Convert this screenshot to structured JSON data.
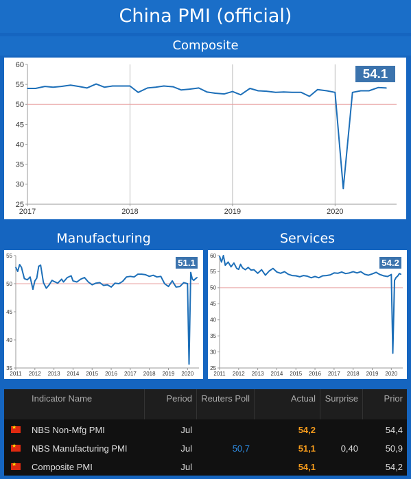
{
  "title": "China PMI (official)",
  "composite_label": "Composite",
  "manufacturing_label": "Manufacturing",
  "services_label": "Services",
  "colors": {
    "line": "#1d6fb8",
    "reference": "#e8a1a1",
    "badge": "#3b73ad",
    "actual": "#f59b1c",
    "poll": "#2f8de4"
  },
  "chart_data": [
    {
      "type": "line",
      "title": "Composite",
      "ylim": [
        25,
        60
      ],
      "yticks": [
        25,
        30,
        35,
        40,
        45,
        50,
        55,
        60
      ],
      "xlim": [
        2017.0,
        2020.6
      ],
      "xticks": [
        2017,
        2018,
        2019,
        2020
      ],
      "vertical_gridlines": [
        2018,
        2019,
        2020
      ],
      "reference_line": 50,
      "last_value_label": "54.1",
      "x": [
        2017.0,
        2017.08,
        2017.17,
        2017.25,
        2017.33,
        2017.42,
        2017.5,
        2017.58,
        2017.67,
        2017.75,
        2017.83,
        2017.92,
        2018.0,
        2018.08,
        2018.17,
        2018.25,
        2018.33,
        2018.42,
        2018.5,
        2018.58,
        2018.67,
        2018.75,
        2018.83,
        2018.92,
        2019.0,
        2019.08,
        2019.17,
        2019.25,
        2019.33,
        2019.42,
        2019.5,
        2019.58,
        2019.67,
        2019.75,
        2019.83,
        2019.92,
        2020.0,
        2020.08,
        2020.17,
        2020.25,
        2020.33,
        2020.42,
        2020.5
      ],
      "values": [
        54.0,
        54.0,
        54.5,
        54.3,
        54.5,
        54.8,
        54.5,
        54.1,
        55.1,
        54.3,
        54.6,
        54.6,
        54.6,
        53.0,
        54.1,
        54.3,
        54.6,
        54.4,
        53.6,
        53.8,
        54.1,
        53.1,
        52.8,
        52.6,
        53.2,
        52.4,
        54.0,
        53.4,
        53.3,
        53.0,
        53.1,
        53.0,
        53.0,
        52.0,
        53.7,
        53.4,
        53.0,
        28.9,
        53.0,
        53.4,
        53.4,
        54.2,
        54.1
      ]
    },
    {
      "type": "line",
      "title": "Manufacturing",
      "ylim": [
        35,
        55
      ],
      "yticks": [
        35,
        40,
        45,
        50,
        55
      ],
      "xlim": [
        2011.0,
        2020.6
      ],
      "xticks": [
        2011,
        2012,
        2013,
        2014,
        2015,
        2016,
        2017,
        2018,
        2019,
        2020
      ],
      "reference_line": 50,
      "last_value_label": "51.1",
      "x": [
        2011.0,
        2011.1,
        2011.2,
        2011.3,
        2011.45,
        2011.6,
        2011.75,
        2011.9,
        2012.0,
        2012.1,
        2012.2,
        2012.3,
        2012.45,
        2012.6,
        2012.75,
        2012.9,
        2013.0,
        2013.2,
        2013.4,
        2013.5,
        2013.7,
        2013.9,
        2014.0,
        2014.2,
        2014.4,
        2014.6,
        2014.8,
        2015.0,
        2015.2,
        2015.4,
        2015.6,
        2015.8,
        2016.0,
        2016.2,
        2016.4,
        2016.6,
        2016.8,
        2017.0,
        2017.2,
        2017.4,
        2017.6,
        2017.8,
        2018.0,
        2018.2,
        2018.4,
        2018.6,
        2018.8,
        2019.0,
        2019.2,
        2019.4,
        2019.6,
        2019.8,
        2020.0,
        2020.08,
        2020.17,
        2020.25,
        2020.33,
        2020.42,
        2020.5
      ],
      "values": [
        52.9,
        52.2,
        53.4,
        52.9,
        50.9,
        50.7,
        51.2,
        49.0,
        50.5,
        51.0,
        53.1,
        53.3,
        50.2,
        49.2,
        49.8,
        50.6,
        50.4,
        50.1,
        50.8,
        50.3,
        51.1,
        51.4,
        50.5,
        50.3,
        50.8,
        51.1,
        50.3,
        49.8,
        50.1,
        50.2,
        49.7,
        49.8,
        49.4,
        50.1,
        50.0,
        50.4,
        51.2,
        51.3,
        51.2,
        51.7,
        51.7,
        51.6,
        51.3,
        51.5,
        51.2,
        51.3,
        50.0,
        49.5,
        50.5,
        49.4,
        49.5,
        50.2,
        50.0,
        35.7,
        52.0,
        50.8,
        50.6,
        50.9,
        51.1
      ]
    },
    {
      "type": "line",
      "title": "Services",
      "ylim": [
        25,
        60
      ],
      "yticks": [
        25,
        30,
        35,
        40,
        45,
        50,
        55,
        60
      ],
      "xlim": [
        2011.0,
        2020.6
      ],
      "xticks": [
        2011,
        2012,
        2013,
        2014,
        2015,
        2016,
        2017,
        2018,
        2019,
        2020
      ],
      "reference_line": 50,
      "last_value_label": "54.2",
      "x": [
        2011.0,
        2011.1,
        2011.2,
        2011.3,
        2011.45,
        2011.6,
        2011.75,
        2011.9,
        2012.0,
        2012.1,
        2012.2,
        2012.35,
        2012.5,
        2012.65,
        2012.8,
        2013.0,
        2013.2,
        2013.4,
        2013.6,
        2013.8,
        2014.0,
        2014.2,
        2014.4,
        2014.6,
        2014.8,
        2015.0,
        2015.2,
        2015.4,
        2015.6,
        2015.8,
        2016.0,
        2016.2,
        2016.4,
        2016.6,
        2016.8,
        2017.0,
        2017.2,
        2017.4,
        2017.6,
        2017.8,
        2018.0,
        2018.2,
        2018.4,
        2018.6,
        2018.8,
        2019.0,
        2019.2,
        2019.4,
        2019.6,
        2019.8,
        2020.0,
        2020.08,
        2020.17,
        2020.25,
        2020.33,
        2020.42,
        2020.5
      ],
      "values": [
        59.8,
        58.0,
        60.0,
        57.0,
        58.0,
        56.5,
        57.7,
        56.0,
        55.7,
        57.3,
        56.2,
        55.6,
        56.3,
        55.5,
        55.6,
        54.5,
        55.6,
        53.9,
        55.2,
        56.0,
        54.9,
        54.5,
        55.0,
        54.2,
        53.8,
        53.7,
        53.4,
        53.8,
        53.6,
        53.1,
        53.5,
        53.1,
        53.7,
        53.8,
        54.0,
        54.6,
        54.5,
        54.9,
        54.4,
        54.6,
        55.0,
        54.6,
        55.0,
        54.2,
        53.9,
        54.3,
        54.8,
        54.1,
        53.7,
        53.5,
        54.1,
        29.6,
        52.3,
        53.2,
        53.6,
        54.4,
        54.2
      ]
    }
  ],
  "table": {
    "headers": {
      "indicator": "Indicator Name",
      "period": "Period",
      "poll": "Reuters Poll",
      "actual": "Actual",
      "surprise": "Surprise",
      "prior": "Prior"
    },
    "rows": [
      {
        "flag": "cn-flag-icon",
        "indicator": "NBS Non-Mfg PMI",
        "period": "Jul",
        "poll": "",
        "actual": "54,2",
        "surprise": "",
        "prior": "54,4"
      },
      {
        "flag": "cn-flag-icon",
        "indicator": "NBS Manufacturing PMI",
        "period": "Jul",
        "poll": "50,7",
        "actual": "51,1",
        "surprise": "0,40",
        "prior": "50,9"
      },
      {
        "flag": "cn-flag-icon",
        "indicator": "Composite PMI",
        "period": "Jul",
        "poll": "",
        "actual": "54,1",
        "surprise": "",
        "prior": "54,2"
      }
    ]
  }
}
